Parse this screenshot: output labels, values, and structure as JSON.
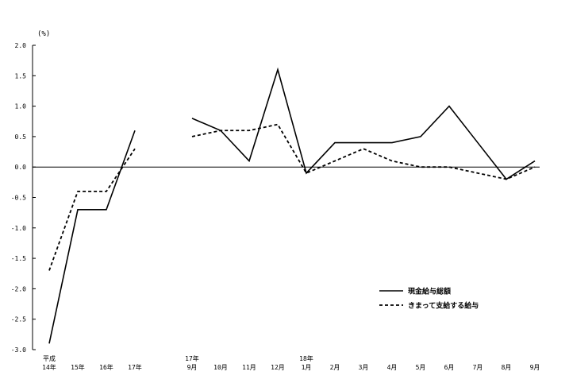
{
  "chart_data": {
    "type": "line",
    "ylabel": "(%)",
    "ylim": [
      -3.0,
      2.0
    ],
    "yticks": [
      "2.0",
      "1.5",
      "1.0",
      "0.5",
      "0.0",
      "-0.5",
      "-1.0",
      "-1.5",
      "-2.0",
      "-2.5",
      "-3.0"
    ],
    "categories": [
      [
        "平成",
        "14年"
      ],
      [
        "15年"
      ],
      [
        "16年"
      ],
      [
        "17年"
      ],
      [],
      [
        "17年",
        "9月"
      ],
      [
        "10月"
      ],
      [
        "11月"
      ],
      [
        "12月"
      ],
      [
        "18年",
        "1月"
      ],
      [
        "2月"
      ],
      [
        "3月"
      ],
      [
        "4月"
      ],
      [
        "5月"
      ],
      [
        "6月"
      ],
      [
        "7月"
      ],
      [
        "8月"
      ],
      [
        "9月"
      ]
    ],
    "series": [
      {
        "name": "現金給与総額",
        "style": "solid",
        "color": "#000000",
        "values": [
          -2.9,
          -0.7,
          -0.7,
          0.6,
          null,
          0.8,
          0.6,
          0.1,
          1.6,
          -0.1,
          0.4,
          0.4,
          0.4,
          0.5,
          1.0,
          0.4,
          -0.2,
          0.1
        ]
      },
      {
        "name": "きまって支給する給与",
        "style": "dashed",
        "color": "#000000",
        "values": [
          -1.7,
          -0.4,
          -0.4,
          0.3,
          null,
          0.5,
          0.6,
          0.6,
          0.7,
          -0.1,
          0.1,
          0.3,
          0.1,
          0.0,
          0.0,
          -0.1,
          -0.2,
          0.0
        ]
      }
    ],
    "zero_line": true,
    "grid": false,
    "legend": "lower-right"
  }
}
